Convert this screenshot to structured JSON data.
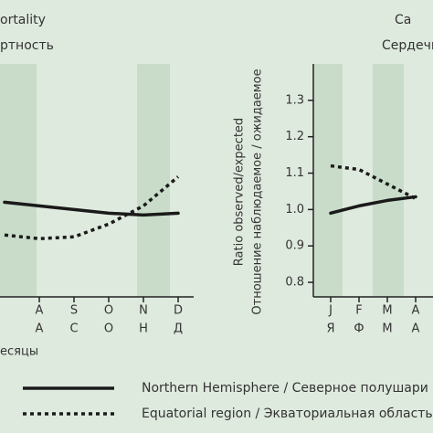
{
  "chart_data": [
    {
      "type": "line",
      "title": "ortality",
      "subtitle": "ртность",
      "categories": [
        null,
        "A",
        "S",
        "O",
        "N",
        "D"
      ],
      "categories_alt": [
        null,
        "А",
        "С",
        "О",
        "Н",
        "Д"
      ],
      "x_label": "есяцы",
      "ylim": [
        0.76,
        1.4
      ],
      "series": [
        {
          "name": "Northern Hemisphere / Северное полушари",
          "color": "#1a1a1a",
          "style": "solid",
          "values": [
            1.02,
            1.01,
            1.0,
            0.99,
            0.985,
            0.99
          ]
        },
        {
          "name": "Equatorial region / Экваториальная область",
          "color": "#1a1a1a",
          "style": "dotted",
          "values": [
            0.93,
            0.92,
            0.925,
            0.96,
            1.01,
            1.09
          ]
        }
      ]
    },
    {
      "type": "line",
      "title": "Ca",
      "subtitle": "Сердечн",
      "y_label": "Ratio observed/expected",
      "y_label_alt": "Отношение наблюдаемое / ожидаемое",
      "categories": [
        "J",
        "F",
        "M",
        "A"
      ],
      "categories_alt": [
        "Я",
        "Ф",
        "М",
        "А"
      ],
      "ylim": [
        0.76,
        1.4
      ],
      "yticks": [
        {
          "value": 0.8,
          "label": "0.8"
        },
        {
          "value": 0.9,
          "label": "0.9"
        },
        {
          "value": 1.0,
          "label": "1.0"
        },
        {
          "value": 1.1,
          "label": "1.1"
        },
        {
          "value": 1.2,
          "label": "1.2"
        },
        {
          "value": 1.3,
          "label": "1.3"
        }
      ],
      "series": [
        {
          "color": "#1a1a1a",
          "style": "solid",
          "values": [
            0.99,
            1.01,
            1.025,
            1.035
          ]
        },
        {
          "color": "#1a1a1a",
          "style": "dotted",
          "values": [
            1.12,
            1.11,
            1.07,
            1.03
          ]
        }
      ]
    }
  ]
}
